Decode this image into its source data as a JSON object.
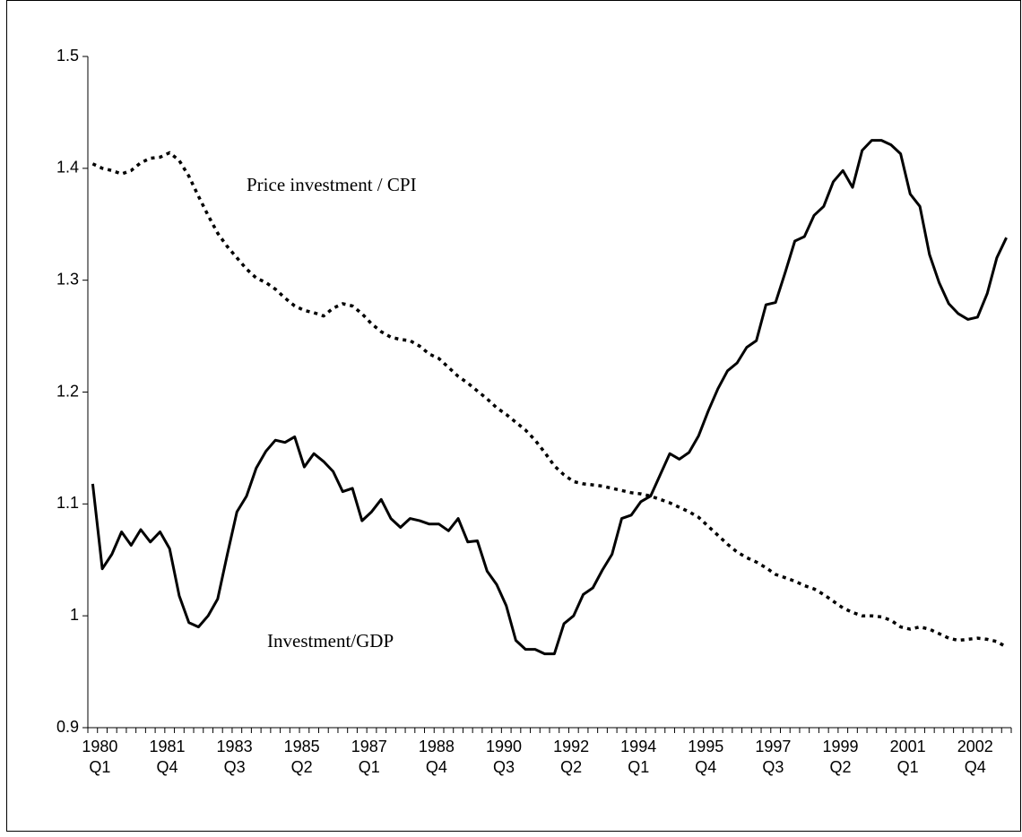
{
  "chart_data": {
    "type": "line",
    "categories": [
      [
        "1980",
        "Q1"
      ],
      null,
      null,
      null,
      null,
      null,
      null,
      [
        "1981",
        "Q4"
      ],
      null,
      null,
      null,
      null,
      null,
      null,
      [
        "1983",
        "Q3"
      ],
      null,
      null,
      null,
      null,
      null,
      null,
      [
        "1985",
        "Q2"
      ],
      null,
      null,
      null,
      null,
      null,
      null,
      [
        "1987",
        "Q1"
      ],
      null,
      null,
      null,
      null,
      null,
      null,
      [
        "1988",
        "Q4"
      ],
      null,
      null,
      null,
      null,
      null,
      null,
      [
        "1990",
        "Q3"
      ],
      null,
      null,
      null,
      null,
      null,
      null,
      [
        "1992",
        "Q2"
      ],
      null,
      null,
      null,
      null,
      null,
      null,
      [
        "1994",
        "Q1"
      ],
      null,
      null,
      null,
      null,
      null,
      null,
      [
        "1995",
        "Q4"
      ],
      null,
      null,
      null,
      null,
      null,
      null,
      [
        "1997",
        "Q3"
      ],
      null,
      null,
      null,
      null,
      null,
      null,
      [
        "1999",
        "Q2"
      ],
      null,
      null,
      null,
      null,
      null,
      null,
      [
        "2001",
        "Q1"
      ],
      null,
      null,
      null,
      null,
      null,
      null,
      [
        "2002",
        "Q4"
      ],
      null,
      null,
      null,
      null
    ],
    "series": [
      {
        "color": "#000000",
        "line_style": "solid",
        "values": [
          1.118,
          1.042,
          1.055,
          1.075,
          1.063,
          1.077,
          1.066,
          1.075,
          1.06,
          1.018,
          0.994,
          0.99,
          1.0,
          1.015,
          1.055,
          1.093,
          1.107,
          1.132,
          1.147,
          1.157,
          1.155,
          1.16,
          1.133,
          1.145,
          1.138,
          1.129,
          1.111,
          1.114,
          1.085,
          1.093,
          1.104,
          1.087,
          1.079,
          1.087,
          1.085,
          1.082,
          1.082,
          1.076,
          1.087,
          1.066,
          1.067,
          1.04,
          1.028,
          1.009,
          0.978,
          0.97,
          0.97,
          0.966,
          0.966,
          0.993,
          1.0,
          1.019,
          1.025,
          1.041,
          1.055,
          1.087,
          1.09,
          1.102,
          1.107,
          1.126,
          1.145,
          1.14,
          1.146,
          1.161,
          1.183,
          1.203,
          1.219,
          1.226,
          1.24,
          1.246,
          1.278,
          1.28,
          1.307,
          1.335,
          1.339,
          1.358,
          1.366,
          1.388,
          1.398,
          1.383,
          1.416,
          1.425,
          1.425,
          1.421,
          1.413,
          1.377,
          1.366,
          1.323,
          1.298,
          1.279,
          1.27,
          1.265,
          1.267,
          1.288,
          1.32,
          1.338
        ]
      },
      {
        "color": "#000000",
        "line_style": "dotted",
        "values": [
          1.404,
          1.4,
          1.398,
          1.395,
          1.398,
          1.405,
          1.409,
          1.41,
          1.414,
          1.407,
          1.393,
          1.375,
          1.358,
          1.342,
          1.33,
          1.32,
          1.31,
          1.302,
          1.298,
          1.292,
          1.284,
          1.277,
          1.273,
          1.271,
          1.268,
          1.275,
          1.279,
          1.277,
          1.27,
          1.261,
          1.254,
          1.249,
          1.247,
          1.246,
          1.241,
          1.234,
          1.23,
          1.222,
          1.214,
          1.208,
          1.201,
          1.194,
          1.186,
          1.18,
          1.173,
          1.166,
          1.157,
          1.146,
          1.134,
          1.126,
          1.12,
          1.118,
          1.117,
          1.116,
          1.114,
          1.112,
          1.11,
          1.109,
          1.107,
          1.104,
          1.101,
          1.097,
          1.093,
          1.088,
          1.08,
          1.072,
          1.064,
          1.057,
          1.052,
          1.048,
          1.043,
          1.037,
          1.034,
          1.031,
          1.027,
          1.024,
          1.019,
          1.013,
          1.007,
          1.003,
          1.0,
          1.0,
          0.999,
          0.996,
          0.99,
          0.988,
          0.99,
          0.988,
          0.984,
          0.98,
          0.978,
          0.979,
          0.98,
          0.979,
          0.977,
          0.972
        ]
      }
    ],
    "annotations": [
      {
        "text": "Price investment / CPI",
        "series": 1
      },
      {
        "text": "Investment/GDP",
        "series": 0
      }
    ],
    "ylim": [
      0.9,
      1.5
    ],
    "yticks": [
      0.9,
      1,
      1.1,
      1.2,
      1.3,
      1.4,
      1.5
    ],
    "grid": false
  }
}
